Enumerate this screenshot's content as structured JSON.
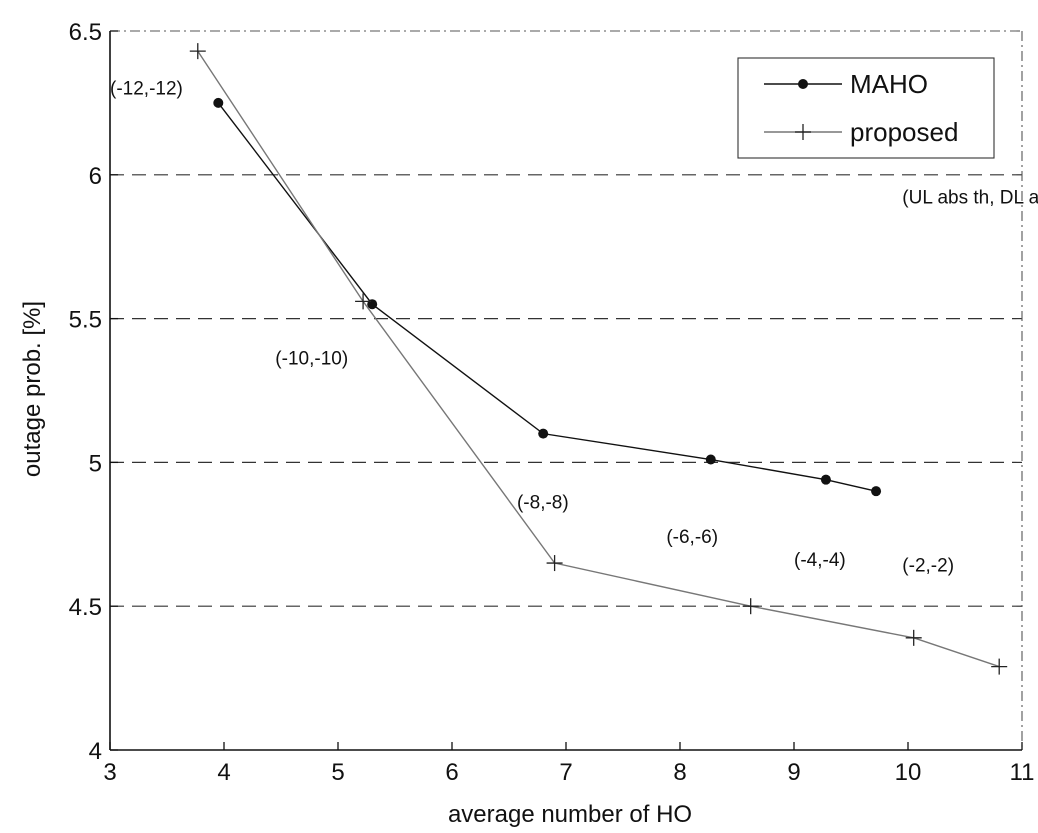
{
  "chart_data": {
    "type": "line",
    "title": "",
    "xlabel": "average number of HO",
    "ylabel": "outage prob. [%]",
    "xlim": [
      3,
      11
    ],
    "ylim": [
      4,
      6.5
    ],
    "xticks": [
      3,
      4,
      5,
      6,
      7,
      8,
      9,
      10,
      11
    ],
    "yticks": [
      4,
      4.5,
      5,
      5.5,
      6,
      6.5
    ],
    "xtick_labels": [
      "3",
      "4",
      "5",
      "6",
      "7",
      "8",
      "9",
      "10",
      "11"
    ],
    "ytick_labels": [
      "4",
      "4.5",
      "5",
      "5.5",
      "6",
      "6.5"
    ],
    "grid": "dashed horizontal",
    "legend_position": "top-right",
    "series": [
      {
        "name": "MAHO",
        "marker": "dot",
        "color": "#111111",
        "x": [
          3.95,
          5.3,
          6.8,
          8.27,
          9.28,
          9.72
        ],
        "y": [
          6.25,
          5.55,
          5.1,
          5.01,
          4.94,
          4.9
        ]
      },
      {
        "name": "proposed",
        "marker": "plus",
        "color": "#777777",
        "x": [
          3.77,
          5.22,
          6.9,
          8.62,
          10.05,
          10.8
        ],
        "y": [
          6.43,
          5.56,
          4.65,
          4.5,
          4.39,
          4.29
        ]
      }
    ],
    "annotations": [
      {
        "text": "(-12,-12)",
        "x": 3.0,
        "y": 6.28
      },
      {
        "text": "(-10,-10)",
        "x": 4.45,
        "y": 5.34
      },
      {
        "text": "(-8,-8)",
        "x": 6.57,
        "y": 4.84
      },
      {
        "text": "(-6,-6)",
        "x": 7.88,
        "y": 4.72
      },
      {
        "text": "(-4,-4)",
        "x": 9.0,
        "y": 4.64
      },
      {
        "text": "(-2,-2)",
        "x": 9.95,
        "y": 4.62
      },
      {
        "text": "(UL abs th, DL abs th)",
        "x": 9.95,
        "y": 5.9
      }
    ]
  }
}
